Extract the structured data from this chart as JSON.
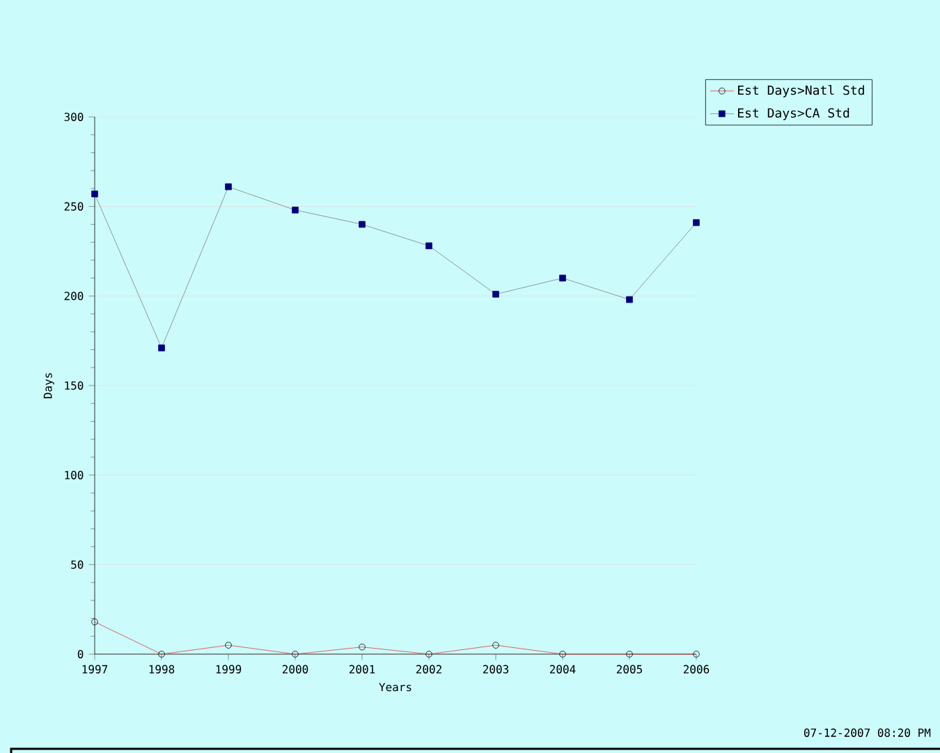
{
  "chart_data": {
    "type": "line",
    "xlabel": "Years",
    "ylabel": "Days",
    "categories": [
      "1997",
      "1998",
      "1999",
      "2000",
      "2001",
      "2002",
      "2003",
      "2004",
      "2005",
      "2006"
    ],
    "series": [
      {
        "name": "Est Days>Natl Std",
        "color": "#e03c3c",
        "marker": "circle",
        "values": [
          18,
          0,
          5,
          0,
          4,
          0,
          5,
          0,
          0,
          0
        ]
      },
      {
        "name": "Est Days>CA Std",
        "color": "#000080",
        "marker": "square",
        "values": [
          257,
          171,
          261,
          248,
          240,
          228,
          201,
          210,
          198,
          241
        ]
      }
    ],
    "ylim": [
      0,
      300
    ],
    "yticks": [
      0,
      50,
      100,
      150,
      200,
      250,
      300
    ],
    "grid": "y",
    "legend": "top right",
    "annotations": [
      "07-12-2007 08:20 PM"
    ]
  }
}
